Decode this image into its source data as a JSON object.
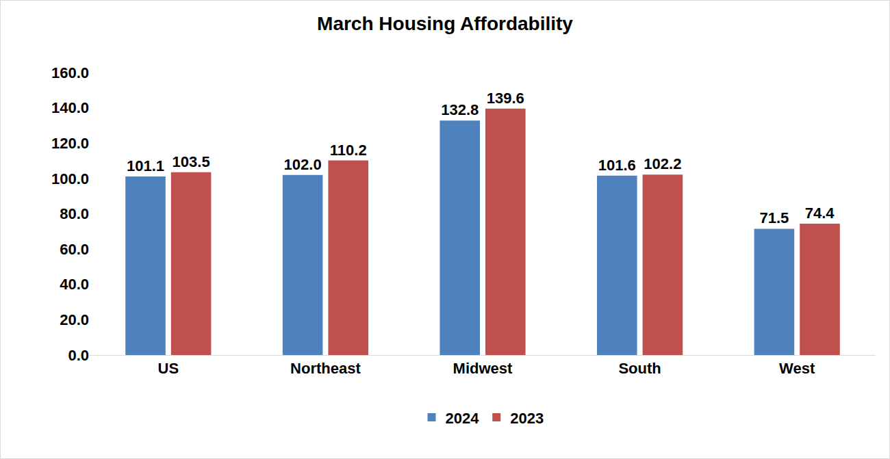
{
  "chart_data": {
    "type": "bar",
    "title": "March Housing Affordability",
    "categories": [
      "US",
      "Northeast",
      "Midwest",
      "South",
      "West"
    ],
    "series": [
      {
        "name": "2024",
        "color": "#4f81bd",
        "values": [
          101.1,
          102.0,
          132.8,
          101.6,
          71.5
        ],
        "value_labels": [
          "101.1",
          "102.0",
          "132.8",
          "101.6",
          "71.5"
        ]
      },
      {
        "name": "2023",
        "color": "#c0504d",
        "values": [
          103.5,
          110.2,
          139.6,
          102.2,
          74.4
        ],
        "value_labels": [
          "103.5",
          "110.2",
          "139.6",
          "102.2",
          "74.4"
        ]
      }
    ],
    "ylim": [
      0,
      160
    ],
    "yticks": [
      {
        "value": 0,
        "label": "0.0"
      },
      {
        "value": 20,
        "label": "20.0"
      },
      {
        "value": 40,
        "label": "40.0"
      },
      {
        "value": 60,
        "label": "60.0"
      },
      {
        "value": 80,
        "label": "80.0"
      },
      {
        "value": 100,
        "label": "100.0"
      },
      {
        "value": 120,
        "label": "120.0"
      },
      {
        "value": 140,
        "label": "140.0"
      },
      {
        "value": 160,
        "label": "160.0"
      }
    ],
    "grid": false,
    "legend": "bottom",
    "data_labels": true
  }
}
